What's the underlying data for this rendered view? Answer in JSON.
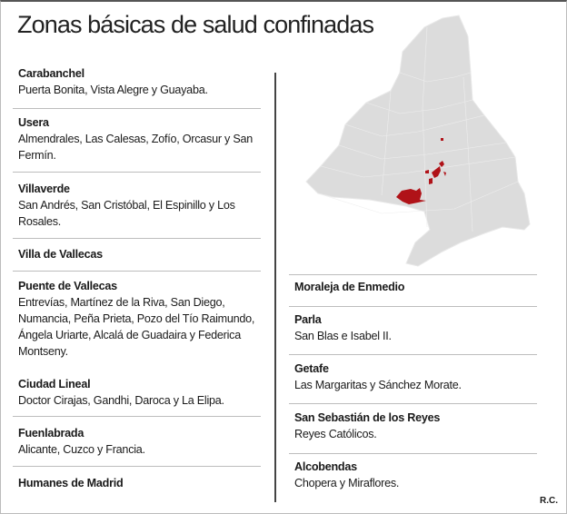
{
  "title": "Zonas básicas de salud confinadas",
  "colors": {
    "highlight": "#b01218",
    "map_base": "#dcdcdc",
    "divider": "#444444"
  },
  "left_column": [
    {
      "district": "Carabanchel",
      "zones": "Puerta Bonita, Vista Alegre y Guayaba."
    },
    {
      "district": "Usera",
      "zones": "Almendrales, Las Calesas, Zofío, Orcasur y San Fermín."
    },
    {
      "district": "Villaverde",
      "zones": "San Andrés, San Cristóbal, El Espinillo y Los Rosales."
    },
    {
      "district": "Villa de Vallecas",
      "zones": ""
    },
    {
      "district": "Puente de Vallecas",
      "zones": "Entrevías, Martínez de la Riva, San Diego, Numancia, Peña Prieta, Pozo del Tío Raimundo, Ángela Uriarte, Alcalá de Guadaira y Federica Montseny."
    },
    {
      "district": "Ciudad Lineal",
      "zones": "Doctor Cirajas, Gandhi, Daroca y La Elipa."
    },
    {
      "district": "Fuenlabrada",
      "zones": "Alicante, Cuzco y Francia."
    },
    {
      "district": "Humanes de Madrid",
      "zones": ""
    }
  ],
  "right_column": [
    {
      "district": "Moraleja de Enmedio",
      "zones": ""
    },
    {
      "district": "Parla",
      "zones": "San Blas e Isabel II."
    },
    {
      "district": "Getafe",
      "zones": "Las Margaritas y Sánchez Morate."
    },
    {
      "district": "San Sebastián de los Reyes",
      "zones": "Reyes Católicos."
    },
    {
      "district": "Alcobendas",
      "zones": "Chopera y Miraflores."
    }
  ],
  "credit": "R.C."
}
